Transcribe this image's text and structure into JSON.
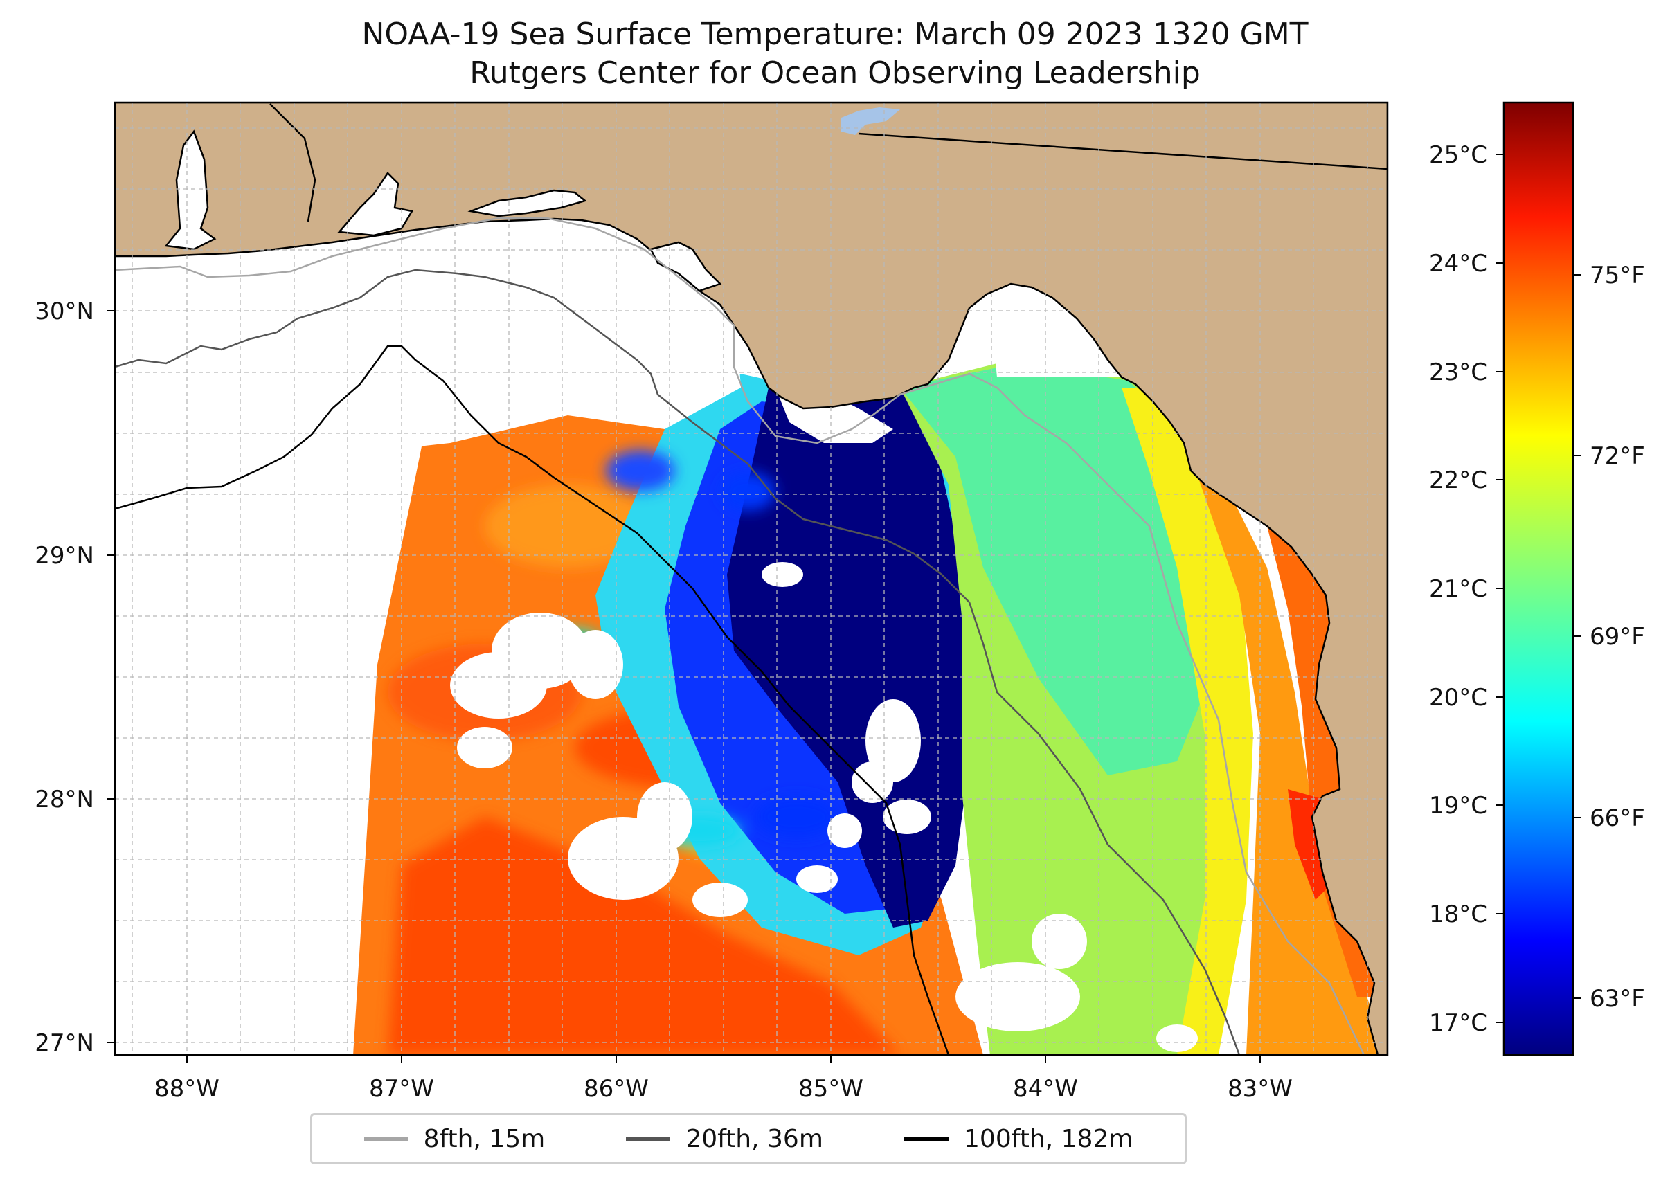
{
  "header": {
    "title": "NOAA-19 Sea Surface Temperature: March 09 2023 1320 GMT",
    "subtitle": "Rutgers Center for Ocean Observing Leadership"
  },
  "map": {
    "land_color": "#cfb08a",
    "lat_labels": [
      "30°N",
      "29°N",
      "28°N",
      "27°N"
    ],
    "lon_labels": [
      "88°W",
      "87°W",
      "86°W",
      "85°W",
      "84°W",
      "83°W"
    ],
    "lon_range": [
      -88.3,
      -82.4
    ],
    "lat_range": [
      26.95,
      30.85
    ]
  },
  "colorbar": {
    "celsius_ticks": [
      "25°C",
      "24°C",
      "23°C",
      "22°C",
      "21°C",
      "20°C",
      "19°C",
      "18°C",
      "17°C"
    ],
    "fahrenheit_ticks": [
      "75°F",
      "72°F",
      "69°F",
      "66°F",
      "63°F"
    ],
    "colormap": "jet"
  },
  "legend": {
    "items": [
      {
        "label": "8fth, 15m",
        "color": "#a6a6a6"
      },
      {
        "label": "20fth, 36m",
        "color": "#555555"
      },
      {
        "label": "100fth, 182m",
        "color": "#000000"
      }
    ]
  }
}
